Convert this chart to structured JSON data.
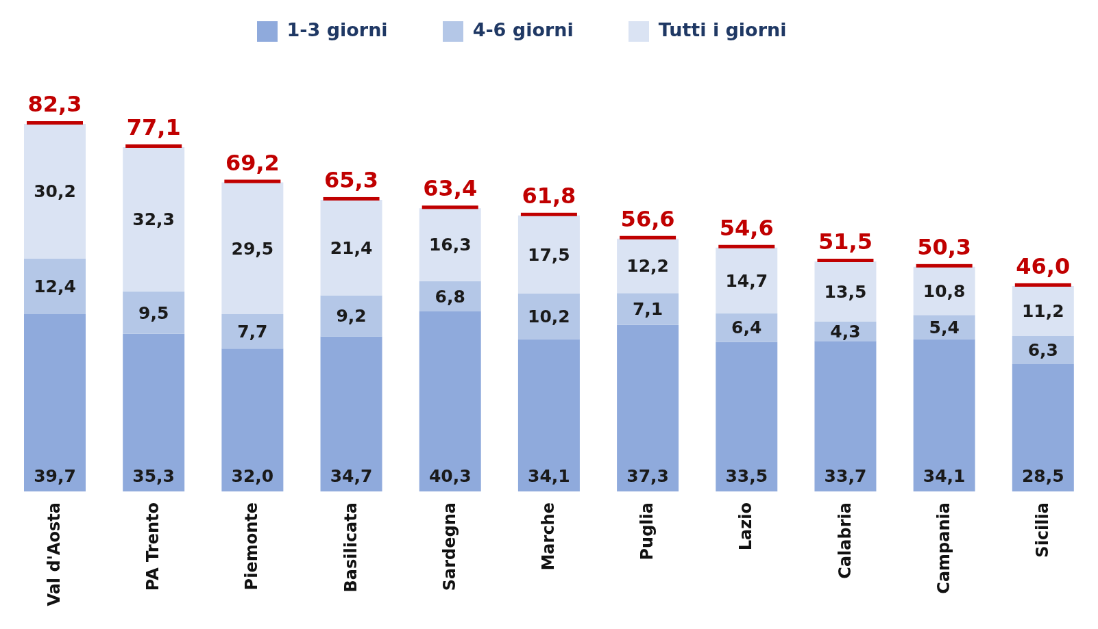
{
  "chart_data": {
    "type": "bar",
    "stacked": true,
    "legend": "top",
    "categories": [
      "Val d'Aosta",
      "PA Trento",
      "Piemonte",
      "Basilicata",
      "Sardegna",
      "Marche",
      "Puglia",
      "Lazio",
      "Calabria",
      "Campania",
      "Sicilia"
    ],
    "series": [
      {
        "name": "1-3 giorni",
        "color": "#8faadc",
        "values": [
          39.7,
          35.3,
          32.0,
          34.7,
          40.3,
          34.1,
          37.3,
          33.5,
          33.7,
          34.1,
          28.5
        ],
        "value_labels": [
          "39,7",
          "35,3",
          "32,0",
          "34,7",
          "40,3",
          "34,1",
          "37,3",
          "33,5",
          "33,7",
          "34,1",
          "28,5"
        ]
      },
      {
        "name": "4-6 giorni",
        "color": "#b4c7e7",
        "values": [
          12.4,
          9.5,
          7.7,
          9.2,
          6.8,
          10.2,
          7.1,
          6.4,
          4.3,
          5.4,
          6.3
        ],
        "value_labels": [
          "12,4",
          "9,5",
          "7,7",
          "9,2",
          "6,8",
          "10,2",
          "7,1",
          "6,4",
          "4,3",
          "5,4",
          "6,3"
        ]
      },
      {
        "name": "Tutti i giorni",
        "color": "#dae3f3",
        "values": [
          30.2,
          32.3,
          29.5,
          21.4,
          16.3,
          17.5,
          12.2,
          14.7,
          13.5,
          10.8,
          11.2
        ],
        "value_labels": [
          "30,2",
          "32,3",
          "29,5",
          "21,4",
          "16,3",
          "17,5",
          "12,2",
          "14,7",
          "13,5",
          "10,8",
          "11,2"
        ]
      }
    ],
    "totals": [
      "82,3",
      "77,1",
      "69,2",
      "65,3",
      "63,4",
      "61,8",
      "56,6",
      "54,6",
      "51,5",
      "50,3",
      "46,0"
    ]
  }
}
